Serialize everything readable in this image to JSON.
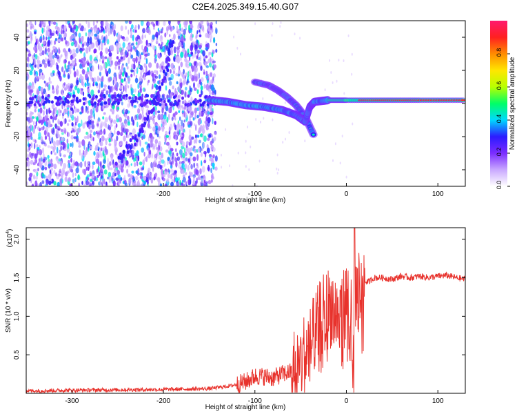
{
  "title": "C2E4.2025.349.15.40.G07",
  "chart_data": [
    {
      "type": "heatmap",
      "title": "C2E4.2025.349.15.40.G07",
      "xlabel": "Height of straight line (km)",
      "ylabel": "Frequency (Hz)",
      "xlim": [
        -350,
        130
      ],
      "ylim": [
        -50,
        50
      ],
      "xticks": [
        -300,
        -200,
        -100,
        0,
        100
      ],
      "xtick_labels": [
        "-300",
        "-200",
        "-100",
        "0",
        "100"
      ],
      "yticks": [
        -40,
        -20,
        0,
        20,
        40
      ],
      "ytick_labels": [
        "-40",
        "-20",
        "0",
        "20",
        "40"
      ],
      "colorbar": {
        "label": "Normalized spectral amplitude",
        "range": [
          0,
          1
        ],
        "ticks": [
          0.0,
          0.2,
          0.4,
          0.6,
          0.8
        ],
        "tick_labels": [
          "0.0",
          "0.2",
          "0.4",
          "0.6",
          "0.8"
        ],
        "colors": [
          "#ffffff",
          "#c9a8ff",
          "#7b2cff",
          "#2c1bff",
          "#00d8ff",
          "#00ff66",
          "#b8ff00",
          "#ffe600",
          "#ff8c00",
          "#ff2020",
          "#ff1a6e"
        ]
      },
      "features": [
        {
          "name": "main signal track",
          "points": [
            [
              -150,
              2
            ],
            [
              -130,
              1
            ],
            [
              -110,
              -1
            ],
            [
              -90,
              -2
            ],
            [
              -70,
              -4
            ],
            [
              -55,
              -7
            ],
            [
              -45,
              -11
            ],
            [
              -40,
              -2
            ],
            [
              -35,
              1
            ],
            [
              -20,
              2
            ],
            [
              0,
              2
            ],
            [
              40,
              2
            ],
            [
              80,
              2
            ],
            [
              130,
              2
            ]
          ]
        },
        {
          "name": "upper branch",
          "points": [
            [
              -100,
              13
            ],
            [
              -85,
              11
            ],
            [
              -75,
              8
            ],
            [
              -65,
              4
            ],
            [
              -55,
              -1
            ],
            [
              -45,
              -8
            ],
            [
              -35,
              -20
            ]
          ]
        },
        {
          "name": "diagonal streak",
          "points": [
            [
              -250,
              -35
            ],
            [
              -235,
              -25
            ],
            [
              -220,
              -12
            ],
            [
              -205,
              5
            ],
            [
              -195,
              25
            ],
            [
              -190,
              40
            ]
          ]
        },
        {
          "name": "noise region end",
          "x": -142
        }
      ]
    },
    {
      "type": "line",
      "xlabel": "Height of straight line (km)",
      "ylabel": "SNR (10 * v/v)",
      "y_multiplier": "(x10",
      "y_multiplier_exp": "4",
      "y_multiplier_close": ")",
      "xlim": [
        -350,
        130
      ],
      "ylim": [
        0,
        2.15
      ],
      "xticks": [
        -300,
        -200,
        -100,
        0,
        100
      ],
      "xtick_labels": [
        "-300",
        "-200",
        "-100",
        "0",
        "100"
      ],
      "yticks": [
        0.5,
        1.0,
        1.5,
        2.0
      ],
      "ytick_labels": [
        "0.5",
        "1.0",
        "1.5",
        "2.0"
      ],
      "series": [
        {
          "name": "SNR",
          "color": "#e8322c",
          "x": [
            -350,
            -300,
            -200,
            -150,
            -125,
            -110,
            -100,
            -90,
            -80,
            -70,
            -60,
            -50,
            -45,
            -40,
            -35,
            -30,
            -25,
            -20,
            -15,
            -10,
            -5,
            0,
            5,
            8,
            10,
            15,
            20,
            25,
            30,
            40,
            50,
            60,
            70,
            80,
            90,
            100,
            110,
            120,
            130
          ],
          "y": [
            0.03,
            0.04,
            0.05,
            0.06,
            0.1,
            0.15,
            0.22,
            0.22,
            0.2,
            0.25,
            0.28,
            0.4,
            0.55,
            0.6,
            0.75,
            0.9,
            1.05,
            1.1,
            1.15,
            1.0,
            1.05,
            1.2,
            1.0,
            0.2,
            1.25,
            1.4,
            1.45,
            1.45,
            1.5,
            1.5,
            1.48,
            1.52,
            1.5,
            1.52,
            1.5,
            1.52,
            1.53,
            1.5,
            1.48
          ]
        }
      ]
    }
  ]
}
